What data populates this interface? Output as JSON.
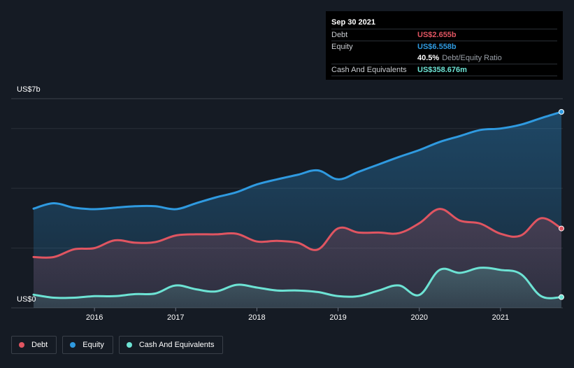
{
  "tooltip": {
    "date": "Sep 30 2021",
    "debt_label": "Debt",
    "debt_value": "US$2.655b",
    "equity_label": "Equity",
    "equity_value": "US$6.558b",
    "ratio_value": "40.5%",
    "ratio_label": "Debt/Equity Ratio",
    "cash_label": "Cash And Equivalents",
    "cash_value": "US$358.676m"
  },
  "legend": {
    "debt": "Debt",
    "equity": "Equity",
    "cash": "Cash And Equivalents"
  },
  "colors": {
    "debt": "#e05561",
    "equity": "#2f9ae0",
    "cash": "#6de3d4",
    "background": "#151b24"
  },
  "chart_data": {
    "type": "area",
    "title": "",
    "xlabel": "",
    "ylabel": "",
    "y_axis_labels": [
      "US$7b",
      "US$0"
    ],
    "ylim": [
      0,
      7
    ],
    "y_unit": "US$ billions",
    "xlim": [
      2015.2,
      2021.75
    ],
    "x_ticks": [
      2016,
      2017,
      2018,
      2019,
      2020,
      2021
    ],
    "grid": true,
    "legend_position": "bottom-left",
    "series": [
      {
        "name": "Debt",
        "x": [
          2015.25,
          2015.5,
          2015.75,
          2016.0,
          2016.25,
          2016.5,
          2016.75,
          2017.0,
          2017.25,
          2017.5,
          2017.75,
          2018.0,
          2018.25,
          2018.5,
          2018.75,
          2019.0,
          2019.25,
          2019.5,
          2019.75,
          2020.0,
          2020.25,
          2020.5,
          2020.75,
          2021.0,
          2021.25,
          2021.5,
          2021.75
        ],
        "values": [
          1.7,
          1.7,
          1.96,
          2.0,
          2.26,
          2.18,
          2.2,
          2.42,
          2.46,
          2.46,
          2.48,
          2.22,
          2.24,
          2.18,
          1.95,
          2.66,
          2.52,
          2.52,
          2.5,
          2.83,
          3.31,
          2.92,
          2.82,
          2.48,
          2.42,
          3.0,
          2.655
        ]
      },
      {
        "name": "Equity",
        "x": [
          2015.25,
          2015.5,
          2015.75,
          2016.0,
          2016.25,
          2016.5,
          2016.75,
          2017.0,
          2017.25,
          2017.5,
          2017.75,
          2018.0,
          2018.25,
          2018.5,
          2018.75,
          2019.0,
          2019.25,
          2019.5,
          2019.75,
          2020.0,
          2020.25,
          2020.5,
          2020.75,
          2021.0,
          2021.25,
          2021.5,
          2021.75
        ],
        "values": [
          3.32,
          3.5,
          3.35,
          3.3,
          3.35,
          3.4,
          3.4,
          3.3,
          3.5,
          3.7,
          3.87,
          4.13,
          4.3,
          4.45,
          4.6,
          4.3,
          4.55,
          4.8,
          5.05,
          5.28,
          5.55,
          5.75,
          5.95,
          6.0,
          6.13,
          6.35,
          6.558
        ]
      },
      {
        "name": "Cash And Equivalents",
        "x": [
          2015.25,
          2015.5,
          2015.75,
          2016.0,
          2016.25,
          2016.5,
          2016.75,
          2017.0,
          2017.25,
          2017.5,
          2017.75,
          2018.0,
          2018.25,
          2018.5,
          2018.75,
          2019.0,
          2019.25,
          2019.5,
          2019.75,
          2020.0,
          2020.25,
          2020.5,
          2020.75,
          2021.0,
          2021.25,
          2021.5,
          2021.75
        ],
        "values": [
          0.44,
          0.34,
          0.34,
          0.39,
          0.39,
          0.46,
          0.48,
          0.75,
          0.62,
          0.55,
          0.77,
          0.68,
          0.58,
          0.58,
          0.53,
          0.39,
          0.39,
          0.58,
          0.75,
          0.43,
          1.27,
          1.17,
          1.34,
          1.27,
          1.13,
          0.39,
          0.359
        ]
      }
    ]
  }
}
